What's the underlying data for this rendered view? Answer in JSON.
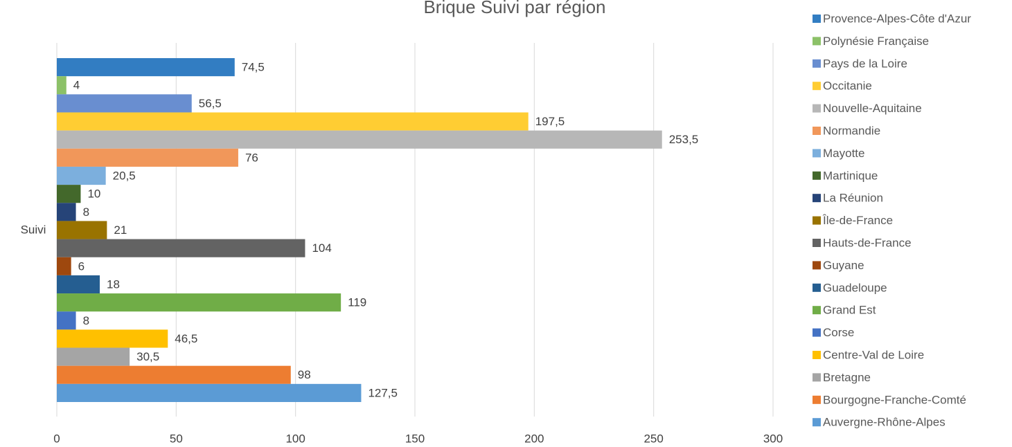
{
  "chart_data": {
    "type": "bar",
    "orientation": "horizontal",
    "title": "Brique Suivi par région",
    "categories": [
      "Suivi"
    ],
    "series": [
      {
        "name": "Provence-Alpes-Côte d'Azur",
        "color": "#327dc2",
        "values": [
          74.5
        ],
        "value_labels": [
          "74,5"
        ]
      },
      {
        "name": "Polynésie Française",
        "color": "#8cc168",
        "values": [
          4
        ]
      },
      {
        "name": "Pays de la Loire",
        "color": "#698ed0",
        "values": [
          56.5
        ],
        "value_labels": [
          "56,5"
        ]
      },
      {
        "name": "Occitanie",
        "color": "#ffcd33",
        "values": [
          197.5
        ],
        "value_labels": [
          "197,5"
        ]
      },
      {
        "name": "Nouvelle-Aquitaine",
        "color": "#b7b7b7",
        "values": [
          253.5
        ],
        "value_labels": [
          "253,5"
        ]
      },
      {
        "name": "Normandie",
        "color": "#f1975a",
        "values": [
          76
        ]
      },
      {
        "name": "Mayotte",
        "color": "#7cafdd",
        "values": [
          20.5
        ],
        "value_labels": [
          "20,5"
        ]
      },
      {
        "name": "Martinique",
        "color": "#43682b",
        "values": [
          10
        ]
      },
      {
        "name": "La Réunion",
        "color": "#264478",
        "values": [
          8
        ]
      },
      {
        "name": "Île-de-France",
        "color": "#997300",
        "values": [
          21
        ]
      },
      {
        "name": "Hauts-de-France",
        "color": "#636363",
        "values": [
          104
        ]
      },
      {
        "name": "Guyane",
        "color": "#9e480e",
        "values": [
          6
        ]
      },
      {
        "name": "Guadeloupe",
        "color": "#255e91",
        "values": [
          18
        ]
      },
      {
        "name": "Grand Est",
        "color": "#70ad47",
        "values": [
          119
        ]
      },
      {
        "name": "Corse",
        "color": "#4472c4",
        "values": [
          8
        ]
      },
      {
        "name": "Centre-Val de Loire",
        "color": "#ffc000",
        "values": [
          46.5
        ],
        "value_labels": [
          "46,5"
        ]
      },
      {
        "name": "Bretagne",
        "color": "#a5a5a5",
        "values": [
          30.5
        ],
        "value_labels": [
          "30,5"
        ]
      },
      {
        "name": "Bourgogne-Franche-Comté",
        "color": "#ed7d31",
        "values": [
          98
        ]
      },
      {
        "name": "Auvergne-Rhône-Alpes",
        "color": "#5b9bd5",
        "values": [
          127.5
        ],
        "value_labels": [
          "127,5"
        ]
      }
    ],
    "xlim": [
      0,
      300
    ],
    "xticks": [
      0,
      50,
      100,
      150,
      200,
      250,
      300
    ],
    "grid": true,
    "legend": "right"
  }
}
